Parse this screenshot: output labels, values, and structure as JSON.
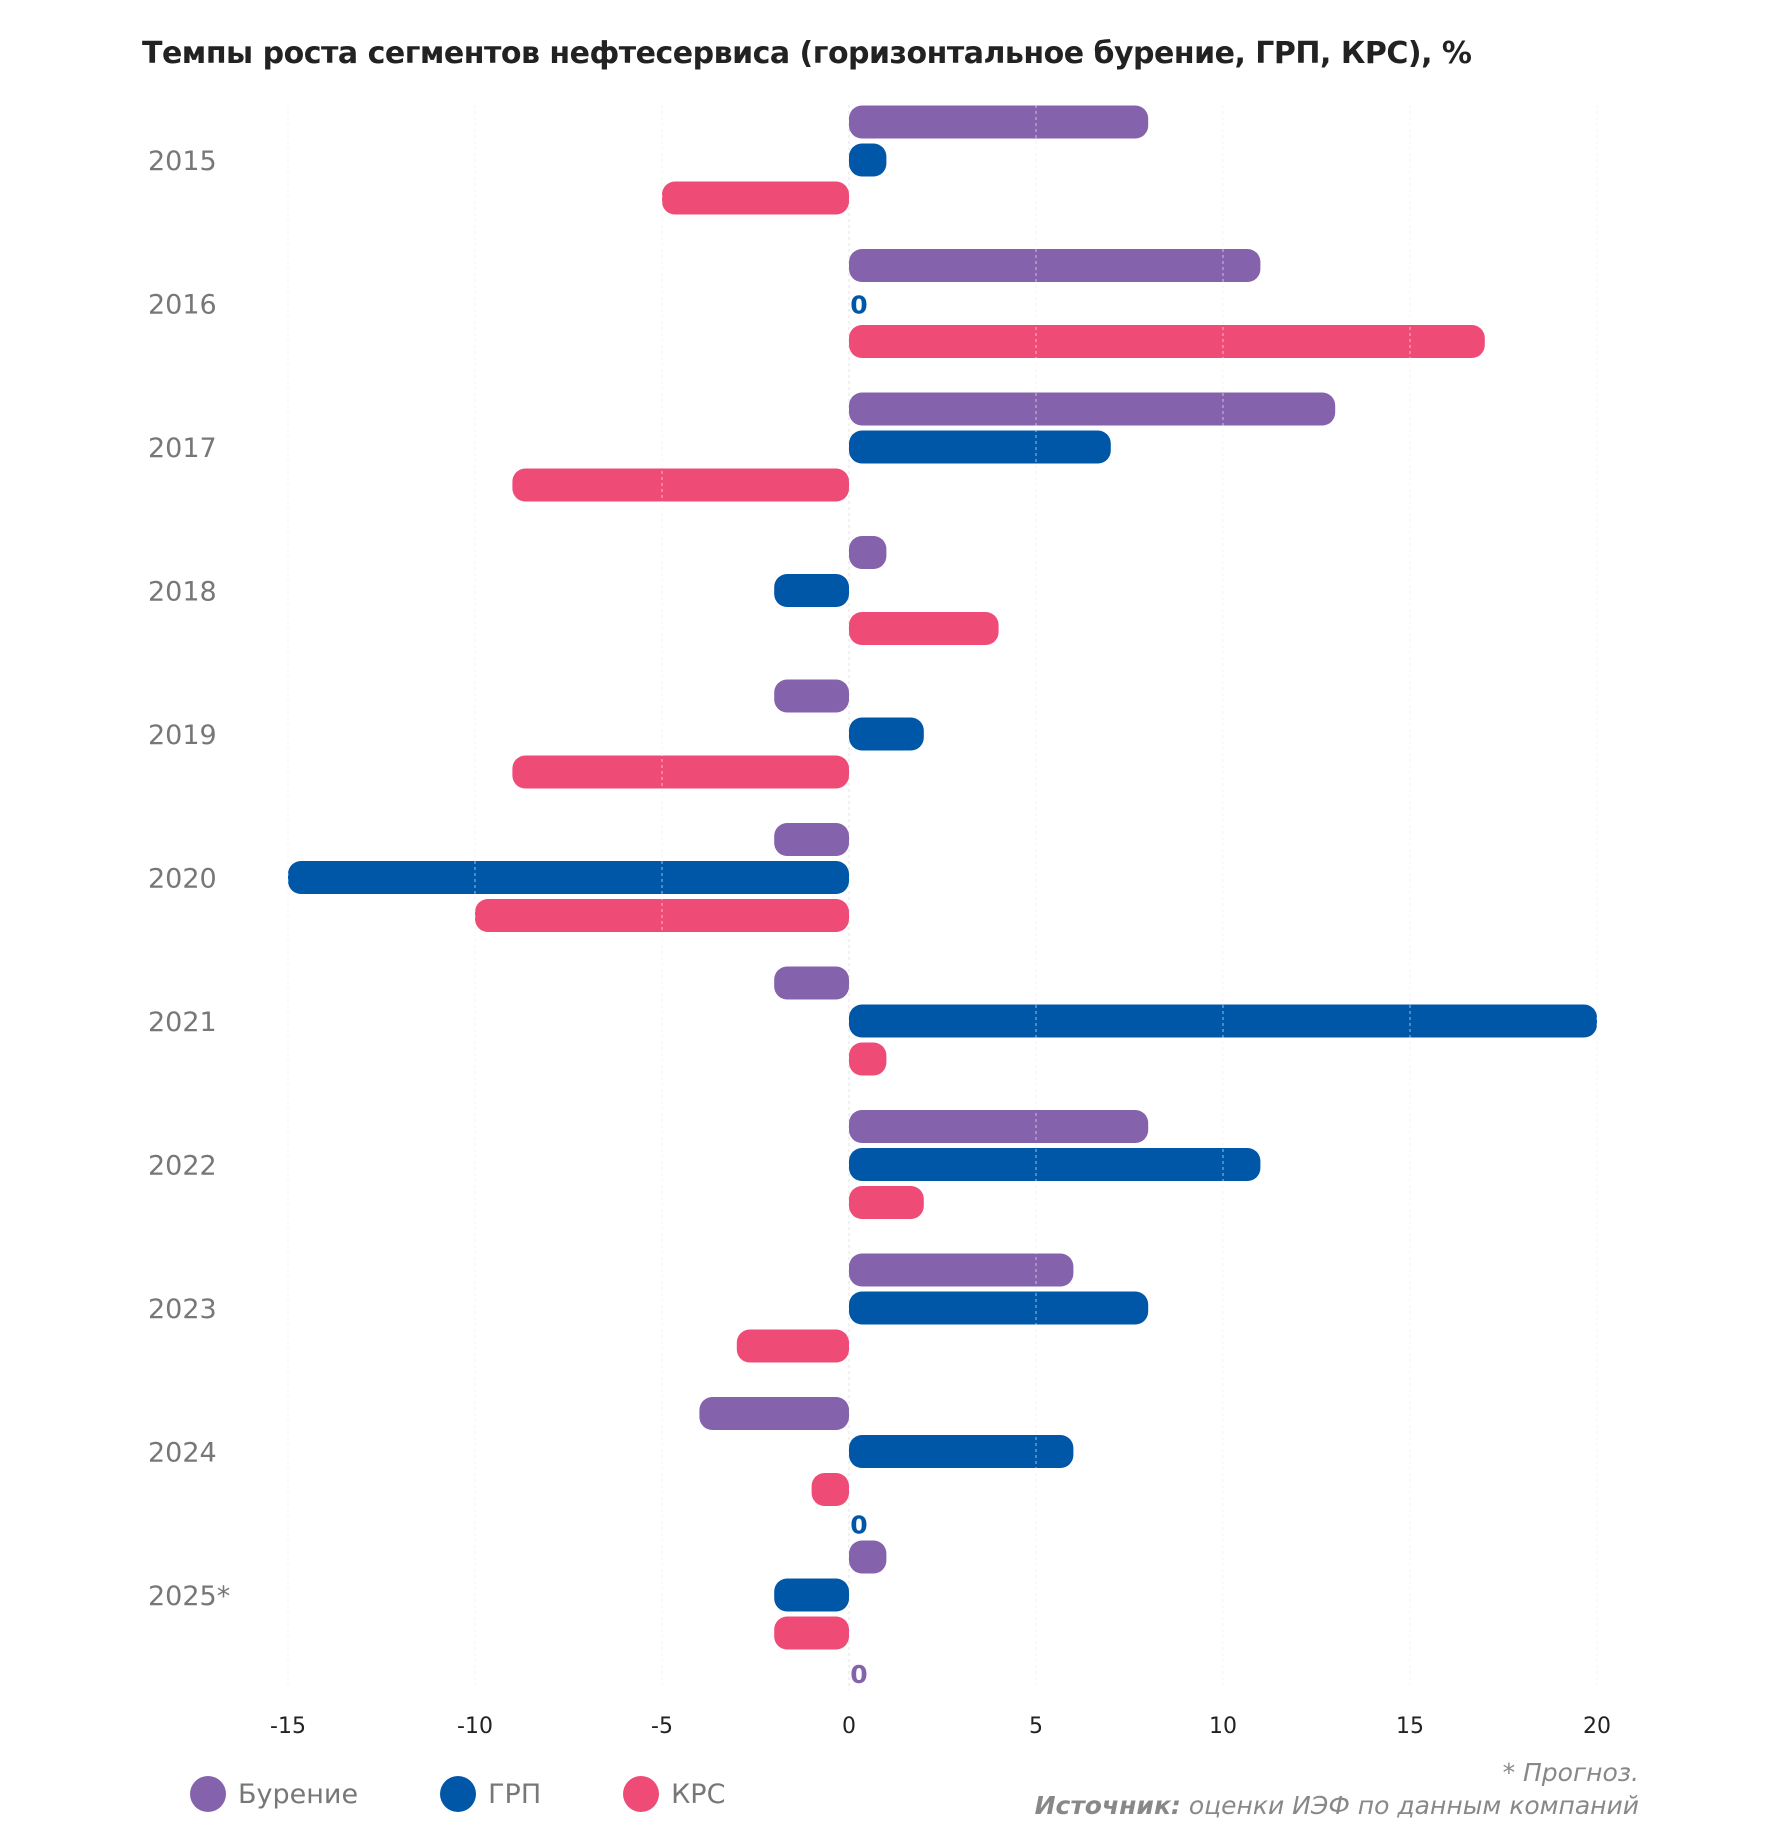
{
  "chart_data": {
    "type": "bar",
    "orientation": "horizontal",
    "title": "Темпы роста сегментов нефтесервиса (горизонтальное бурение, ГРП, КРС), %",
    "categories": [
      "2015",
      "2016",
      "2017",
      "2018",
      "2019",
      "2020",
      "2021",
      "2022",
      "2023",
      "2024",
      "2025*"
    ],
    "series": [
      {
        "name": "Бурение",
        "color": "#8462ac",
        "values": [
          8,
          11,
          13,
          1,
          -2,
          -2,
          -2,
          8,
          6,
          -4,
          1
        ]
      },
      {
        "name": "ГРП",
        "color": "#0057a8",
        "values": [
          1,
          0,
          7,
          -2,
          2,
          -15,
          20,
          11,
          8,
          6,
          -2
        ]
      },
      {
        "name": "КРС",
        "color": "#ef4b77",
        "values": [
          -5,
          17,
          -9,
          4,
          -9,
          -10,
          1,
          2,
          -3,
          -1,
          -2
        ]
      }
    ],
    "xlim": [
      -15,
      20
    ],
    "xticks": [
      -15,
      -10,
      -5,
      0,
      5,
      10,
      15,
      20
    ],
    "grid": true,
    "legend_position": "bottom-left",
    "annotations": [
      {
        "text": "0",
        "series": "ГРП",
        "category": "2016"
      },
      {
        "text": "0",
        "series": "ГРП",
        "category": "2024",
        "slot": "after"
      },
      {
        "text": "0",
        "series": "Бурение",
        "category": "2025*",
        "slot": "after"
      }
    ]
  },
  "footnote": "* Прогноз.",
  "source_label": "Источник:",
  "source_text": " оценки ИЭФ по данным компаний"
}
